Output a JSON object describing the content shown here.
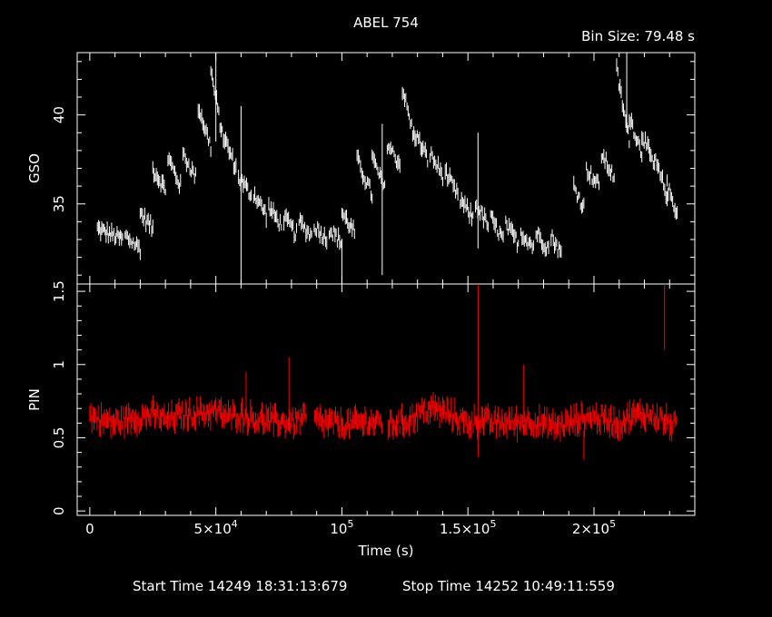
{
  "chart_data": {
    "type": "line",
    "title": "ABEL 754",
    "bin_size_label": "Bin Size:  79.48  s",
    "xlabel": "Time (s)",
    "xlim": [
      -5000,
      240000
    ],
    "x_ticks": [
      {
        "value": 0,
        "label": "0"
      },
      {
        "value": 50000,
        "label": "5×10",
        "exp": "4"
      },
      {
        "value": 100000,
        "label": "10",
        "exp": "5"
      },
      {
        "value": 150000,
        "label": "1.5×10",
        "exp": "5"
      },
      {
        "value": 200000,
        "label": "2×10",
        "exp": "5"
      }
    ],
    "panels": [
      {
        "name": "GSO",
        "ylabel": "GSO",
        "color": "#ffffff",
        "ylim": [
          30.5,
          43.5
        ],
        "y_ticks": [
          {
            "value": 35,
            "label": "35"
          },
          {
            "value": 40,
            "label": "40"
          }
        ],
        "segments": [
          {
            "x": [
              3000,
              13000
            ],
            "y": [
              33.6,
              33.0
            ]
          },
          {
            "x": [
              14000,
              20000
            ],
            "y": [
              33.2,
              32.5
            ]
          },
          {
            "x": [
              20000,
              25000
            ],
            "y": [
              34.5,
              33.6
            ]
          },
          {
            "x": [
              25000,
              30000
            ],
            "y": [
              37.0,
              35.8
            ]
          },
          {
            "x": [
              31000,
              36000
            ],
            "y": [
              37.6,
              36.0
            ]
          },
          {
            "x": [
              37000,
              42000
            ],
            "y": [
              37.8,
              36.5
            ]
          },
          {
            "x": [
              43000,
              48000
            ],
            "y": [
              40.5,
              38.2
            ]
          },
          {
            "x": [
              48000,
              53000
            ],
            "y": [
              42.5,
              38.5
            ]
          },
          {
            "x": [
              53000,
              58000
            ],
            "y": [
              38.8,
              37.0
            ]
          },
          {
            "x": [
              59000,
              64000
            ],
            "y": [
              36.5,
              35.5
            ]
          },
          {
            "x": [
              65000,
              70000
            ],
            "y": [
              35.6,
              34.4
            ]
          },
          {
            "x": [
              71000,
              76000
            ],
            "y": [
              34.8,
              33.8
            ]
          },
          {
            "x": [
              77000,
              82000
            ],
            "y": [
              34.2,
              33.3
            ]
          },
          {
            "x": [
              83000,
              88000
            ],
            "y": [
              34.0,
              33.2
            ]
          },
          {
            "x": [
              89000,
              94000
            ],
            "y": [
              33.8,
              33.0
            ]
          },
          {
            "x": [
              95000,
              100000
            ],
            "y": [
              33.6,
              32.8
            ]
          },
          {
            "x": [
              100000,
              105000
            ],
            "y": [
              34.5,
              33.4
            ]
          },
          {
            "x": [
              106000,
              112000
            ],
            "y": [
              37.5,
              35.5
            ]
          },
          {
            "x": [
              112000,
              117000
            ],
            "y": [
              37.6,
              35.8
            ]
          },
          {
            "x": [
              118000,
              123000
            ],
            "y": [
              38.4,
              37.2
            ]
          },
          {
            "x": [
              124000,
              129000
            ],
            "y": [
              41.5,
              38.5
            ]
          },
          {
            "x": [
              129000,
              134000
            ],
            "y": [
              39.0,
              37.5
            ]
          },
          {
            "x": [
              135000,
              140000
            ],
            "y": [
              37.8,
              36.6
            ]
          },
          {
            "x": [
              141000,
              146000
            ],
            "y": [
              36.8,
              35.4
            ]
          },
          {
            "x": [
              147000,
              152000
            ],
            "y": [
              35.2,
              34.2
            ]
          },
          {
            "x": [
              153000,
              158000
            ],
            "y": [
              35.0,
              33.8
            ]
          },
          {
            "x": [
              159000,
              164000
            ],
            "y": [
              34.2,
              33.0
            ]
          },
          {
            "x": [
              165000,
              170000
            ],
            "y": [
              33.8,
              32.8
            ]
          },
          {
            "x": [
              171000,
              176000
            ],
            "y": [
              33.4,
              32.6
            ]
          },
          {
            "x": [
              177000,
              182000
            ],
            "y": [
              33.4,
              32.5
            ]
          },
          {
            "x": [
              183000,
              187000
            ],
            "y": [
              33.2,
              32.2
            ]
          },
          {
            "x": [
              192000,
              196000
            ],
            "y": [
              36.0,
              34.8
            ]
          },
          {
            "x": [
              197000,
              202000
            ],
            "y": [
              37.0,
              36.0
            ]
          },
          {
            "x": [
              203000,
              208000
            ],
            "y": [
              37.8,
              36.5
            ]
          },
          {
            "x": [
              209000,
              214000
            ],
            "y": [
              42.5,
              38.5
            ]
          },
          {
            "x": [
              214000,
              219000
            ],
            "y": [
              40.0,
              37.8
            ]
          },
          {
            "x": [
              219000,
              224000
            ],
            "y": [
              39.0,
              37.0
            ]
          },
          {
            "x": [
              224000,
              229000
            ],
            "y": [
              37.5,
              35.5
            ]
          },
          {
            "x": [
              229000,
              233000
            ],
            "y": [
              36.0,
              34.5
            ]
          }
        ],
        "spikes": [
          {
            "x": 50000,
            "y": [
              38.5,
              43.5
            ]
          },
          {
            "x": 60000,
            "y": [
              30.5,
              40.5
            ]
          },
          {
            "x": 100000,
            "y": [
              30.5,
              33.0
            ]
          },
          {
            "x": 116000,
            "y": [
              31.0,
              39.5
            ]
          },
          {
            "x": 154000,
            "y": [
              32.5,
              39.0
            ]
          },
          {
            "x": 213000,
            "y": [
              39.0,
              43.5
            ]
          }
        ]
      },
      {
        "name": "PIN",
        "ylabel": "PIN",
        "color": "#ff0000",
        "ylim": [
          -0.03,
          1.55
        ],
        "y_ticks": [
          {
            "value": 0,
            "label": "0"
          },
          {
            "value": 0.5,
            "label": "0.5"
          },
          {
            "value": 1,
            "label": "1"
          },
          {
            "value": 1.5,
            "label": "1.5"
          }
        ],
        "series": [
          {
            "x": [
              0,
              5000,
              10000,
              15000,
              20000,
              25000,
              30000,
              35000,
              40000,
              45000,
              50000,
              55000,
              60000,
              65000,
              70000,
              75000,
              80000,
              85000,
              90000,
              95000,
              100000,
              105000,
              110000,
              115000,
              120000,
              125000,
              130000,
              135000,
              140000,
              145000,
              150000,
              155000,
              160000,
              165000,
              170000,
              175000,
              180000,
              185000,
              190000,
              195000,
              200000,
              205000,
              210000,
              215000,
              220000,
              225000,
              230000,
              233000
            ],
            "y": [
              0.65,
              0.62,
              0.6,
              0.63,
              0.64,
              0.66,
              0.62,
              0.65,
              0.66,
              0.67,
              0.68,
              0.64,
              0.66,
              0.63,
              0.62,
              0.61,
              0.6,
              0.64,
              0.62,
              0.6,
              0.59,
              0.6,
              0.61,
              0.6,
              0.59,
              0.61,
              0.66,
              0.7,
              0.68,
              0.64,
              0.6,
              0.62,
              0.6,
              0.61,
              0.6,
              0.62,
              0.59,
              0.58,
              0.6,
              0.63,
              0.64,
              0.62,
              0.6,
              0.65,
              0.66,
              0.64,
              0.6,
              0.58
            ]
          }
        ],
        "spikes": [
          {
            "x": 62000,
            "y": [
              0.6,
              0.95
            ]
          },
          {
            "x": 79000,
            "y": [
              0.55,
              1.05
            ]
          },
          {
            "x": 154000,
            "y": [
              0.37,
              1.55
            ]
          },
          {
            "x": 172000,
            "y": [
              0.6,
              1.0
            ]
          },
          {
            "x": 196000,
            "y": [
              0.35,
              0.55
            ]
          },
          {
            "x": 228000,
            "y": [
              1.1,
              1.55
            ]
          }
        ]
      }
    ]
  },
  "footer": {
    "start_time": "Start Time 14249  18:31:13:679",
    "stop_time": "Stop Time 14252  10:49:11:559"
  }
}
